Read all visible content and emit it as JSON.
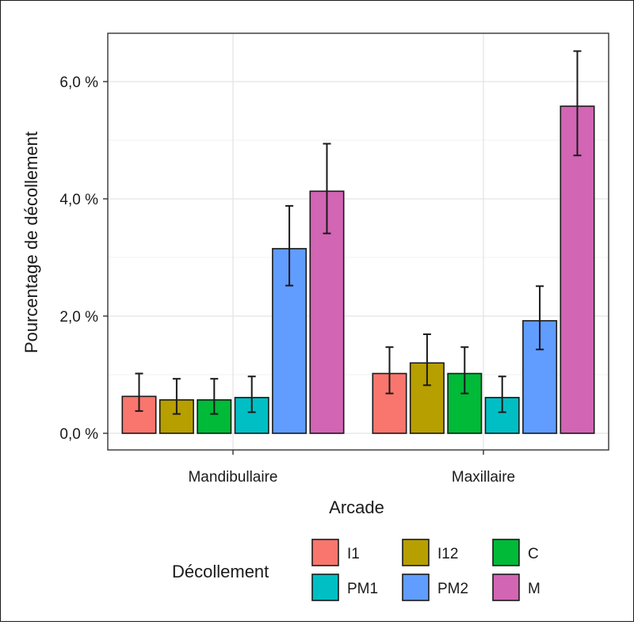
{
  "chart_data": {
    "type": "bar",
    "xlabel": "Arcade",
    "ylabel": "Pourcentage de décollement",
    "ylim": [
      0,
      6.8
    ],
    "yticks": [
      0,
      2,
      4,
      6
    ],
    "ytick_labels": [
      "0,0 %",
      "2,0 %",
      "4,0 %",
      "6,0 %"
    ],
    "categories": [
      "Mandibullaire",
      "Maxillaire"
    ],
    "grid": true,
    "legend": {
      "title": "Décollement",
      "placement": "bottom"
    },
    "series": [
      {
        "name": "I1",
        "color": "#F8766D",
        "values": [
          0.63,
          1.02
        ],
        "err_low": [
          0.38,
          0.68
        ],
        "err_high": [
          1.02,
          1.47
        ]
      },
      {
        "name": "I12",
        "color": "#B79F00",
        "values": [
          0.57,
          1.2
        ],
        "err_low": [
          0.33,
          0.82
        ],
        "err_high": [
          0.93,
          1.69
        ]
      },
      {
        "name": "C",
        "color": "#00BA38",
        "values": [
          0.57,
          1.02
        ],
        "err_low": [
          0.33,
          0.68
        ],
        "err_high": [
          0.93,
          1.47
        ]
      },
      {
        "name": "PM1",
        "color": "#00BFC4",
        "values": [
          0.61,
          0.61
        ],
        "err_low": [
          0.36,
          0.36
        ],
        "err_high": [
          0.97,
          0.97
        ]
      },
      {
        "name": "PM2",
        "color": "#619CFF",
        "values": [
          3.15,
          1.92
        ],
        "err_low": [
          2.52,
          1.43
        ],
        "err_high": [
          3.88,
          2.51
        ]
      },
      {
        "name": "M",
        "color": "#D265B4",
        "values": [
          4.13,
          5.58
        ],
        "err_low": [
          3.41,
          4.74
        ],
        "err_high": [
          4.94,
          6.52
        ]
      }
    ]
  }
}
